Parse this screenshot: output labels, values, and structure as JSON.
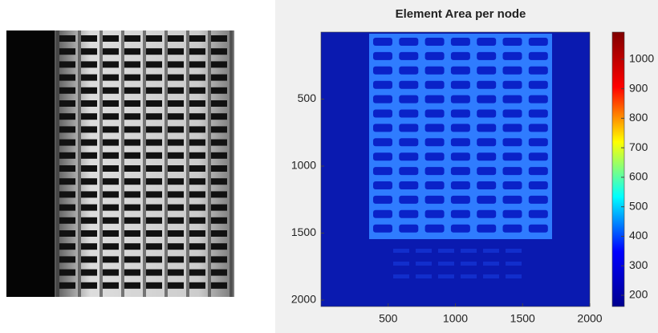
{
  "chart_data": {
    "type": "heatmap",
    "title": "Element Area per node",
    "xlim": [
      0,
      2000
    ],
    "xticks": [
      500,
      1000,
      1500,
      2000
    ],
    "ylim": [
      0,
      2048
    ],
    "yticks": [
      500,
      1000,
      1500,
      2000
    ],
    "y_reversed": true,
    "colormap": "jet",
    "clim": [
      162,
      1092
    ],
    "colorbar_ticks": [
      200,
      300,
      400,
      500,
      600,
      700,
      800,
      900,
      1000
    ]
  }
}
